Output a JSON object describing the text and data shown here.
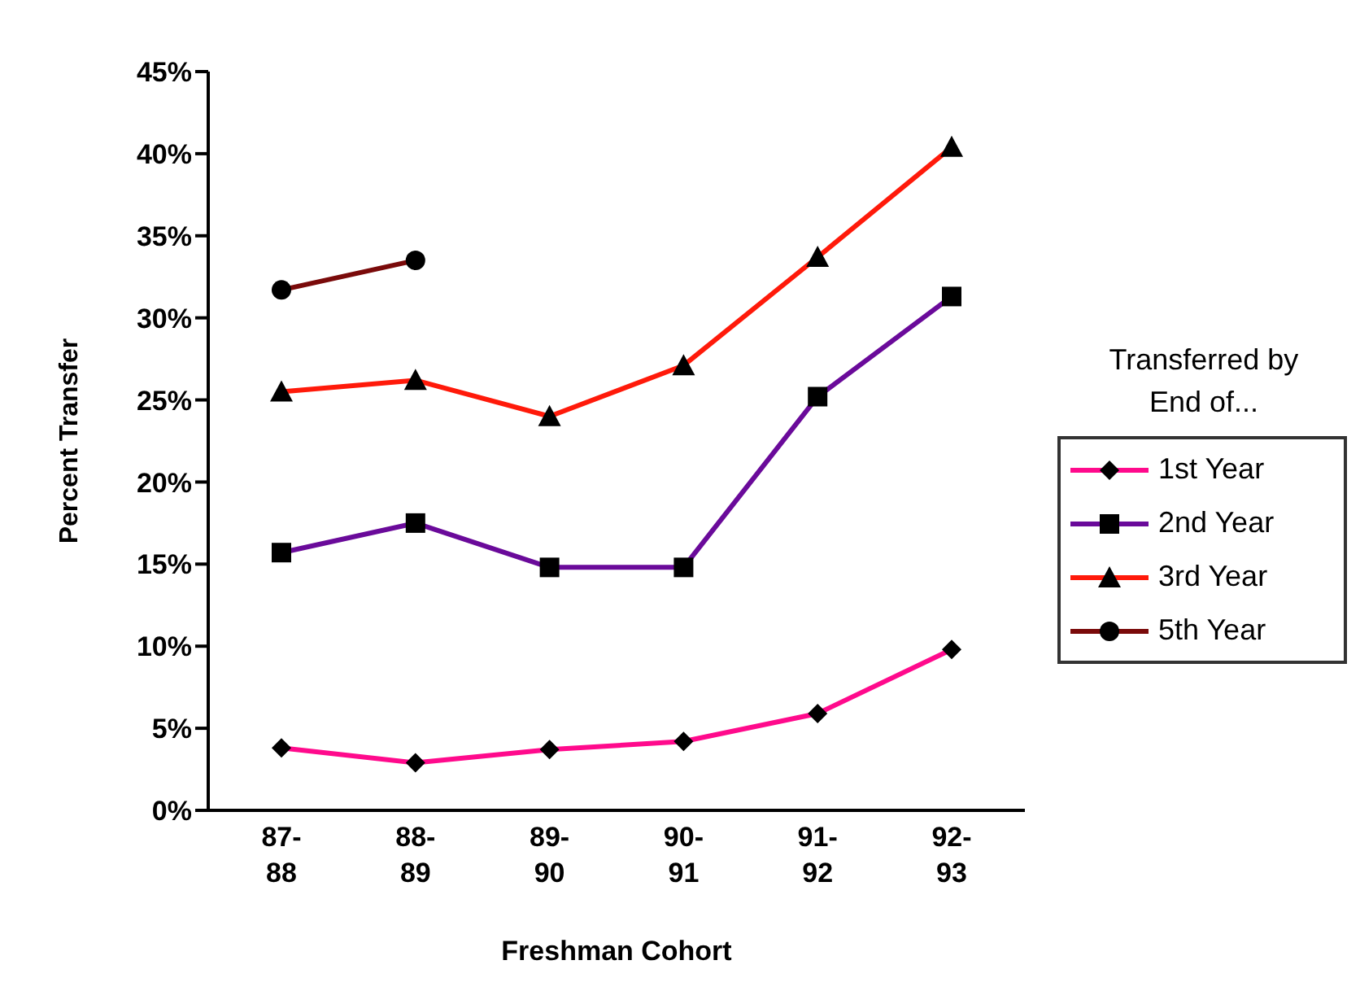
{
  "chart_data": {
    "type": "line",
    "xlabel": "Freshman Cohort",
    "ylabel": "Percent Transfer",
    "legend_title": "Transferred by End of...",
    "categories": [
      "87-88",
      "88-89",
      "89-90",
      "90-91",
      "91-92",
      "92-93"
    ],
    "series": [
      {
        "name": "1st Year",
        "color": "#ff0a8c",
        "marker": "diamond",
        "values": [
          3.8,
          2.9,
          3.7,
          4.2,
          5.9,
          9.8
        ]
      },
      {
        "name": "2nd Year",
        "color": "#6a0a9a",
        "marker": "square",
        "values": [
          15.7,
          17.5,
          14.8,
          14.8,
          25.2,
          31.3
        ]
      },
      {
        "name": "3rd Year",
        "color": "#ff1a0a",
        "marker": "triangle",
        "values": [
          25.5,
          26.2,
          24.0,
          27.1,
          33.7,
          40.4
        ]
      },
      {
        "name": "5th Year",
        "color": "#7a0a0a",
        "marker": "circle",
        "values": [
          31.7,
          33.5,
          null,
          null,
          null,
          null
        ]
      }
    ],
    "ylim": [
      0,
      45
    ],
    "yticks": [
      {
        "value": 0,
        "label": "0%"
      },
      {
        "value": 5,
        "label": "5%"
      },
      {
        "value": 10,
        "label": "10%"
      },
      {
        "value": 15,
        "label": "15%"
      },
      {
        "value": 20,
        "label": "20%"
      },
      {
        "value": 25,
        "label": "25%"
      },
      {
        "value": 30,
        "label": "30%"
      },
      {
        "value": 35,
        "label": "35%"
      },
      {
        "value": 40,
        "label": "40%"
      },
      {
        "value": 45,
        "label": "45%"
      }
    ],
    "grid": false,
    "legend": "right"
  }
}
